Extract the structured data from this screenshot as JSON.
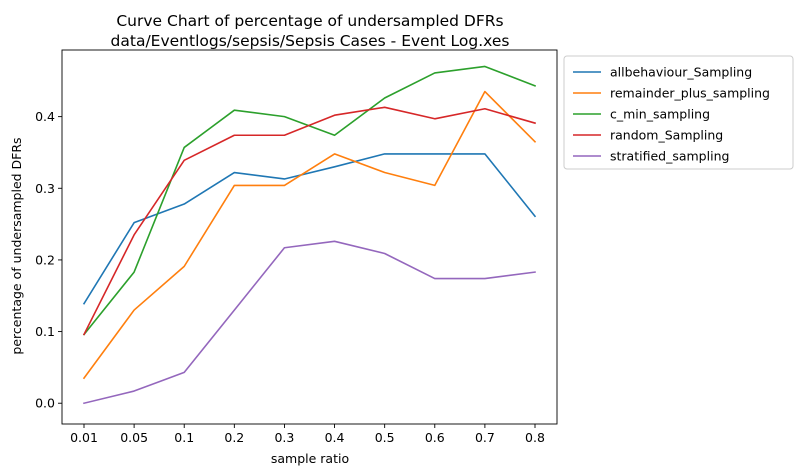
{
  "chart_data": {
    "type": "line",
    "title": "Curve Chart of percentage of undersampled DFRs",
    "subtitle": "data/Eventlogs/sepsis/Sepsis Cases - Event Log.xes",
    "xlabel": "sample ratio",
    "ylabel": "percentage of undersampled DFRs",
    "categories": [
      "0.01",
      "0.05",
      "0.1",
      "0.2",
      "0.3",
      "0.4",
      "0.5",
      "0.6",
      "0.7",
      "0.8"
    ],
    "ylim": [
      -0.029,
      0.493
    ],
    "yticks": [
      "0.0",
      "0.1",
      "0.2",
      "0.3",
      "0.4"
    ],
    "grid": false,
    "legend_position": "outside-top-right",
    "series": [
      {
        "name": "allbehaviour_Sampling",
        "color": "#1f77b4",
        "values": [
          0.139,
          0.252,
          0.278,
          0.322,
          0.313,
          0.33,
          0.348,
          0.348,
          0.348,
          0.261
        ]
      },
      {
        "name": "remainder_plus_sampling",
        "color": "#ff7f0e",
        "values": [
          0.035,
          0.13,
          0.191,
          0.304,
          0.304,
          0.348,
          0.322,
          0.304,
          0.435,
          0.365
        ]
      },
      {
        "name": "c_min_sampling",
        "color": "#2ca02c",
        "values": [
          0.096,
          0.183,
          0.357,
          0.409,
          0.4,
          0.374,
          0.426,
          0.461,
          0.47,
          0.443
        ]
      },
      {
        "name": "random_Sampling",
        "color": "#d62728",
        "values": [
          0.096,
          0.235,
          0.339,
          0.374,
          0.374,
          0.402,
          0.413,
          0.397,
          0.411,
          0.391
        ]
      },
      {
        "name": "stratified_sampling",
        "color": "#9467bd",
        "values": [
          0.0,
          0.017,
          0.043,
          0.13,
          0.217,
          0.226,
          0.209,
          0.174,
          0.174,
          0.183
        ]
      }
    ]
  }
}
